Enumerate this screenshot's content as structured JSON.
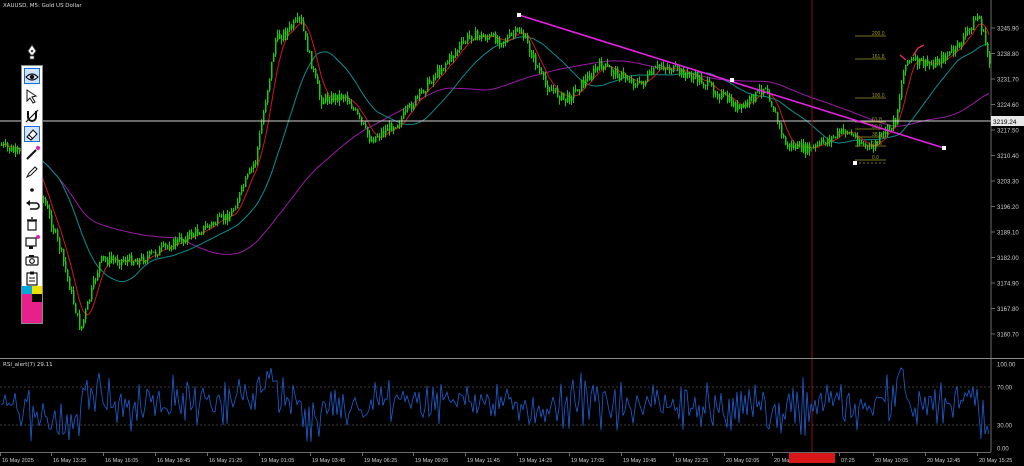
{
  "chart": {
    "symbol_label": "XAUUSD, M5:  Gold US Dollar",
    "current_price": "3219.24",
    "price_ticks": [
      "3245.90",
      "3238.80",
      "3231.70",
      "3224.60",
      "3217.50",
      "3210.40",
      "3203.30",
      "3196.20",
      "3189.10",
      "3182.00",
      "3174.90",
      "3167.80",
      "3160.70"
    ],
    "time_ticks": [
      "16 May 2025",
      "16 May 13:25",
      "16 May 16:05",
      "16 May 18:45",
      "16 May 21:25",
      "19 May 01:05",
      "19 May 03:45",
      "19 May 06:25",
      "19 May 09:05",
      "19 May 11:45",
      "19 May 14:25",
      "19 May 17:05",
      "19 May 19:45",
      "19 May 22:25",
      "20 May 02:05",
      "20 May",
      "07:25",
      "20 May 10:05",
      "20 May 12:45",
      "20 May 15:25"
    ],
    "fib_levels": [
      "200.0",
      "161.8",
      "100.0",
      "61.8",
      "50.0",
      "38.2",
      "23.6",
      "0.0"
    ],
    "colors": {
      "candle": "#22c800",
      "ma_red": "#d01818",
      "ma_teal": "#0e8c8c",
      "ma_violet": "#9a1aa6",
      "trendline": "#e620e6",
      "fib": "#9b9b24",
      "rsi": "#1e5fd2",
      "crosshair": "#8a1010"
    }
  },
  "rsi": {
    "label": "RSI_alert(7) 29.11",
    "ticks": [
      "100.00",
      "70.00",
      "30.00",
      "0.00"
    ]
  },
  "toolbar": {
    "items": [
      "pen-icon",
      "eye-icon",
      "cursor-icon",
      "magnet-icon",
      "eraser-icon",
      "line-icon",
      "dot-icon",
      "undo-icon",
      "trash-icon",
      "stamp-icon",
      "screenshot-icon",
      "clipboard-icon",
      "color-palette"
    ]
  }
}
